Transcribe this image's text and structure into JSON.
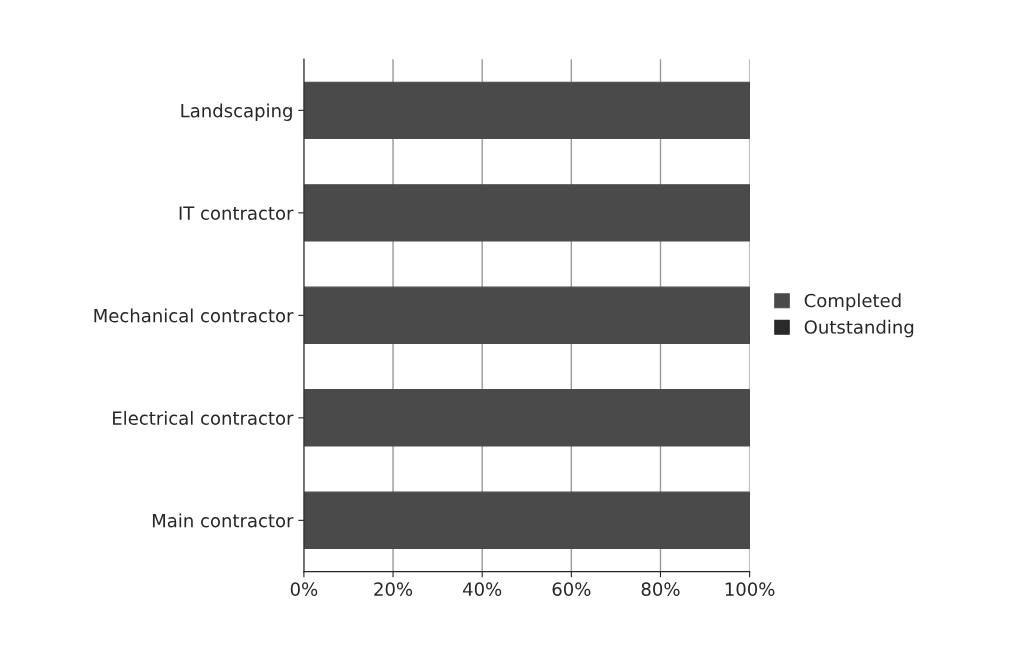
{
  "chart_data": {
    "type": "bar",
    "orientation": "horizontal",
    "stacked": true,
    "categories": [
      "Landscaping",
      "IT contractor",
      "Mechanical contractor",
      "Electrical contractor",
      "Main contractor"
    ],
    "series": [
      {
        "name": "Completed",
        "color": "#4a4a4a",
        "values": [
          100,
          100,
          100,
          100,
          100
        ]
      },
      {
        "name": "Outstanding",
        "color": "#2a2a2a",
        "values": [
          0,
          0,
          0,
          0,
          0
        ]
      }
    ],
    "xlim": [
      0,
      100
    ],
    "xticks": [
      {
        "value": 0,
        "label": "0%"
      },
      {
        "value": 20,
        "label": "20%"
      },
      {
        "value": 40,
        "label": "40%"
      },
      {
        "value": 60,
        "label": "60%"
      },
      {
        "value": 80,
        "label": "80%"
      },
      {
        "value": 100,
        "label": "100%"
      }
    ],
    "grid": "x",
    "legend": "right"
  }
}
